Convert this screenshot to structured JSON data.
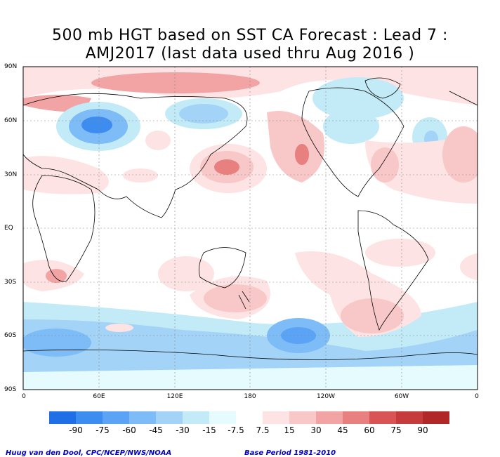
{
  "title_line1": "500 mb HGT based on SST CA Forecast : Lead 7 :",
  "title_line2": "AMJ2017 (last data used thru Aug 2016 )",
  "y_ticks": [
    "90N",
    "60N",
    "30N",
    "EQ",
    "30S",
    "60S",
    "90S"
  ],
  "x_ticks": [
    "0",
    "60E",
    "120E",
    "180",
    "120W",
    "60W",
    "0"
  ],
  "colorbar": {
    "labels": [
      "-90",
      "-75",
      "-60",
      "-45",
      "-30",
      "-15",
      "-7.5",
      "7.5",
      "15",
      "30",
      "45",
      "60",
      "75",
      "90"
    ],
    "colors": [
      "#1f6fe6",
      "#3d8cf0",
      "#5aa3f5",
      "#7ebcf7",
      "#a3d3f7",
      "#c2ebf7",
      "#e6fbfd",
      "#ffffff",
      "#fde3e3",
      "#f8c7c7",
      "#f2a3a3",
      "#e88080",
      "#d95454",
      "#c63c3c",
      "#b02828"
    ]
  },
  "credit_left": "Huug van den Dool, CPC/NCEP/NWS/NOAA",
  "credit_right": "Base Period 1981-2010"
}
